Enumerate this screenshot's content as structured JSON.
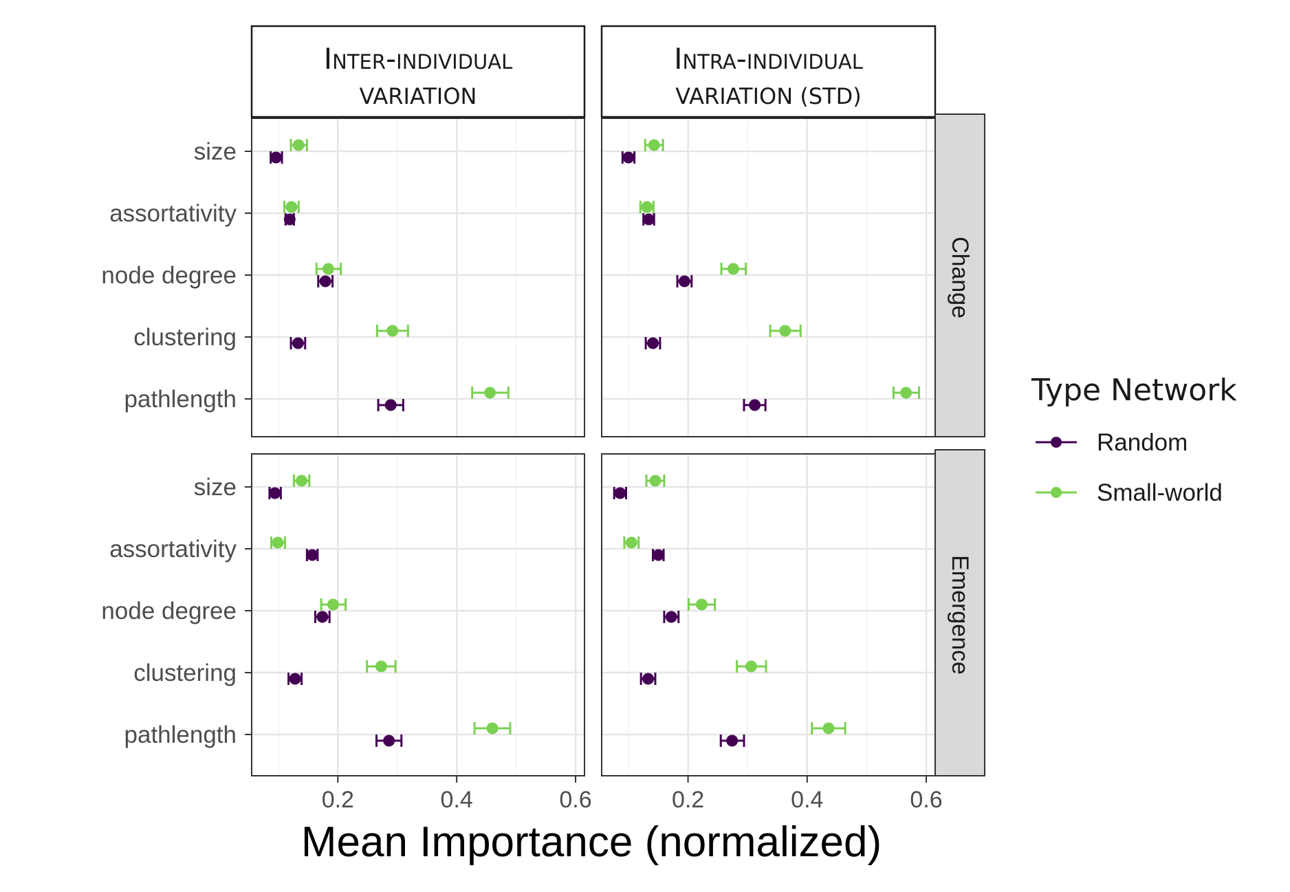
{
  "chart_data": {
    "type": "dot-errorbar",
    "xlabel": "Mean Importance (normalized)",
    "xlim": [
      0.055,
      0.615
    ],
    "x_ticks": [
      "0.2",
      "0.4",
      "0.6"
    ],
    "x_tick_values": [
      0.2,
      0.4,
      0.6
    ],
    "grid": true,
    "categories": [
      "size",
      "assortativity",
      "node degree",
      "clustering",
      "pathlength"
    ],
    "columns": [
      {
        "key": "inter",
        "title_main": "Inter-individual",
        "title_sub": "variation"
      },
      {
        "key": "intra",
        "title_main": "Intra-individual",
        "title_sub": "variation (std)"
      }
    ],
    "rows": [
      "Change",
      "Emergence"
    ],
    "legend": {
      "title": "Type Network",
      "placement": "right",
      "entries": [
        {
          "name": "Random",
          "color": "#440154"
        },
        {
          "name": "Small-world",
          "color": "#7ad151"
        }
      ]
    },
    "panels": [
      {
        "row": "Change",
        "column": "inter",
        "series": [
          {
            "name": "Random",
            "points": [
              {
                "category": "size",
                "x": 0.096,
                "lo": 0.087,
                "hi": 0.106
              },
              {
                "category": "assortativity",
                "x": 0.119,
                "lo": 0.112,
                "hi": 0.126
              },
              {
                "category": "node degree",
                "x": 0.179,
                "lo": 0.167,
                "hi": 0.191
              },
              {
                "category": "clustering",
                "x": 0.133,
                "lo": 0.121,
                "hi": 0.145
              },
              {
                "category": "pathlength",
                "x": 0.289,
                "lo": 0.268,
                "hi": 0.31
              }
            ]
          },
          {
            "name": "Small-world",
            "points": [
              {
                "category": "size",
                "x": 0.134,
                "lo": 0.121,
                "hi": 0.148
              },
              {
                "category": "assortativity",
                "x": 0.122,
                "lo": 0.11,
                "hi": 0.134
              },
              {
                "category": "node degree",
                "x": 0.184,
                "lo": 0.164,
                "hi": 0.205
              },
              {
                "category": "clustering",
                "x": 0.292,
                "lo": 0.266,
                "hi": 0.318
              },
              {
                "category": "pathlength",
                "x": 0.456,
                "lo": 0.426,
                "hi": 0.487
              }
            ]
          }
        ]
      },
      {
        "row": "Change",
        "column": "intra",
        "series": [
          {
            "name": "Random",
            "points": [
              {
                "category": "size",
                "x": 0.1,
                "lo": 0.09,
                "hi": 0.11
              },
              {
                "category": "assortativity",
                "x": 0.134,
                "lo": 0.125,
                "hi": 0.143
              },
              {
                "category": "node degree",
                "x": 0.194,
                "lo": 0.182,
                "hi": 0.206
              },
              {
                "category": "clustering",
                "x": 0.141,
                "lo": 0.129,
                "hi": 0.153
              },
              {
                "category": "pathlength",
                "x": 0.312,
                "lo": 0.294,
                "hi": 0.33
              }
            ]
          },
          {
            "name": "Small-world",
            "points": [
              {
                "category": "size",
                "x": 0.143,
                "lo": 0.128,
                "hi": 0.158
              },
              {
                "category": "assortativity",
                "x": 0.131,
                "lo": 0.12,
                "hi": 0.142
              },
              {
                "category": "node degree",
                "x": 0.276,
                "lo": 0.256,
                "hi": 0.297
              },
              {
                "category": "clustering",
                "x": 0.363,
                "lo": 0.338,
                "hi": 0.389
              },
              {
                "category": "pathlength",
                "x": 0.566,
                "lo": 0.545,
                "hi": 0.588
              }
            ]
          }
        ]
      },
      {
        "row": "Emergence",
        "column": "inter",
        "series": [
          {
            "name": "Random",
            "points": [
              {
                "category": "size",
                "x": 0.094,
                "lo": 0.085,
                "hi": 0.104
              },
              {
                "category": "assortativity",
                "x": 0.157,
                "lo": 0.148,
                "hi": 0.166
              },
              {
                "category": "node degree",
                "x": 0.174,
                "lo": 0.162,
                "hi": 0.186
              },
              {
                "category": "clustering",
                "x": 0.128,
                "lo": 0.117,
                "hi": 0.139
              },
              {
                "category": "pathlength",
                "x": 0.286,
                "lo": 0.265,
                "hi": 0.307
              }
            ]
          },
          {
            "name": "Small-world",
            "points": [
              {
                "category": "size",
                "x": 0.139,
                "lo": 0.126,
                "hi": 0.152
              },
              {
                "category": "assortativity",
                "x": 0.099,
                "lo": 0.088,
                "hi": 0.111
              },
              {
                "category": "node degree",
                "x": 0.192,
                "lo": 0.172,
                "hi": 0.213
              },
              {
                "category": "clustering",
                "x": 0.273,
                "lo": 0.249,
                "hi": 0.297
              },
              {
                "category": "pathlength",
                "x": 0.46,
                "lo": 0.43,
                "hi": 0.49
              }
            ]
          }
        ]
      },
      {
        "row": "Emergence",
        "column": "intra",
        "series": [
          {
            "name": "Random",
            "points": [
              {
                "category": "size",
                "x": 0.086,
                "lo": 0.076,
                "hi": 0.096
              },
              {
                "category": "assortativity",
                "x": 0.15,
                "lo": 0.141,
                "hi": 0.159
              },
              {
                "category": "node degree",
                "x": 0.172,
                "lo": 0.16,
                "hi": 0.184
              },
              {
                "category": "clustering",
                "x": 0.133,
                "lo": 0.121,
                "hi": 0.145
              },
              {
                "category": "pathlength",
                "x": 0.274,
                "lo": 0.255,
                "hi": 0.294
              }
            ]
          },
          {
            "name": "Small-world",
            "points": [
              {
                "category": "size",
                "x": 0.145,
                "lo": 0.13,
                "hi": 0.16
              },
              {
                "category": "assortativity",
                "x": 0.105,
                "lo": 0.093,
                "hi": 0.117
              },
              {
                "category": "node degree",
                "x": 0.223,
                "lo": 0.201,
                "hi": 0.245
              },
              {
                "category": "clustering",
                "x": 0.306,
                "lo": 0.282,
                "hi": 0.331
              },
              {
                "category": "pathlength",
                "x": 0.436,
                "lo": 0.408,
                "hi": 0.464
              }
            ]
          }
        ]
      }
    ]
  }
}
